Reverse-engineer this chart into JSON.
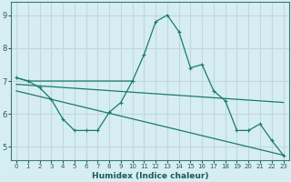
{
  "xlabel": "Humidex (Indice chaleur)",
  "background_color": "#d6eef2",
  "grid_color": "#c0d8dc",
  "line_color": "#1a7a6e",
  "xlim": [
    -0.5,
    23.5
  ],
  "ylim": [
    4.6,
    9.4
  ],
  "xticks": [
    0,
    1,
    2,
    3,
    4,
    5,
    6,
    7,
    8,
    9,
    10,
    11,
    12,
    13,
    14,
    15,
    16,
    17,
    18,
    19,
    20,
    21,
    22,
    23
  ],
  "yticks": [
    5,
    6,
    7,
    8,
    9
  ],
  "series_main": {
    "x": [
      0,
      1,
      2,
      3,
      4,
      5,
      6,
      7,
      8,
      9,
      10,
      11,
      12,
      13,
      14,
      15,
      16,
      17,
      18,
      19,
      20,
      21,
      22,
      23
    ],
    "y": [
      7.1,
      7.0,
      6.8,
      6.45,
      5.85,
      5.5,
      5.5,
      5.5,
      6.05,
      6.35,
      7.0,
      7.8,
      8.8,
      9.0,
      8.5,
      7.4,
      7.5,
      6.7,
      6.4,
      5.5,
      5.5,
      5.7,
      5.2,
      4.75
    ]
  },
  "series_flat": {
    "x": [
      0,
      1,
      10
    ],
    "y": [
      7.1,
      7.0,
      7.0
    ]
  },
  "series_trend1": {
    "x": [
      0,
      23
    ],
    "y": [
      6.9,
      6.35
    ]
  },
  "series_trend2": {
    "x": [
      0,
      23
    ],
    "y": [
      6.7,
      4.75
    ]
  }
}
